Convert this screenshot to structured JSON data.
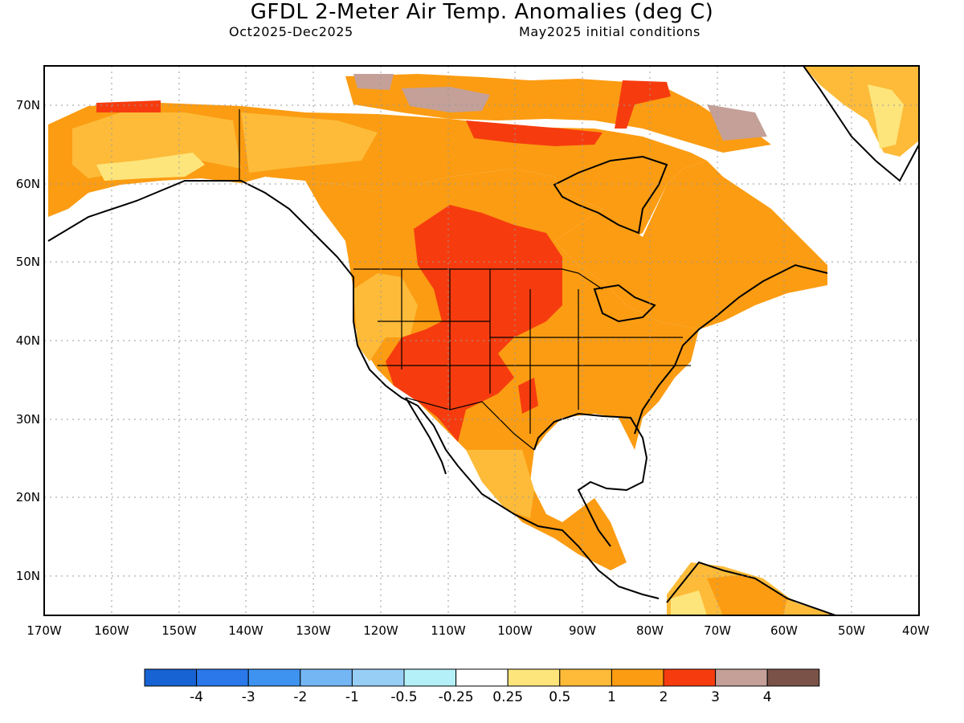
{
  "title": "GFDL 2-Meter Air Temp. Anomalies (deg C)",
  "subtitle_left": "Oct2025-Dec2025",
  "subtitle_right": "May2025 initial conditions",
  "colors": {
    "c1": "#1863d3",
    "c2": "#2a78ea",
    "c3": "#3f93f0",
    "c4": "#74b6f4",
    "c5": "#97cef6",
    "c6": "#b3f0f8",
    "white": "#ffffff",
    "y1": "#fde57c",
    "y2": "#fdbb39",
    "o1": "#fb9c12",
    "r1": "#f63c0f",
    "b1": "#c4a098",
    "b2": "#7a5248"
  },
  "map": {
    "lat_labels": [
      "70N",
      "60N",
      "50N",
      "40N",
      "30N",
      "20N",
      "10N"
    ],
    "lon_labels": [
      "170W",
      "160W",
      "150W",
      "140W",
      "130W",
      "120W",
      "110W",
      "100W",
      "90W",
      "80W",
      "70W",
      "60W",
      "50W",
      "40W"
    ]
  },
  "colorbar": {
    "labels": [
      "-4",
      "-3",
      "-2",
      "-1",
      "-0.5",
      "-0.25",
      "0.25",
      "0.5",
      "1",
      "2",
      "3",
      "4"
    ],
    "colors": [
      "#1863d3",
      "#2a78ea",
      "#3f93f0",
      "#74b6f4",
      "#97cef6",
      "#b3f0f8",
      "#ffffff",
      "#fde57c",
      "#fdbb39",
      "#fb9c12",
      "#f63c0f",
      "#c4a098",
      "#7a5248"
    ]
  }
}
